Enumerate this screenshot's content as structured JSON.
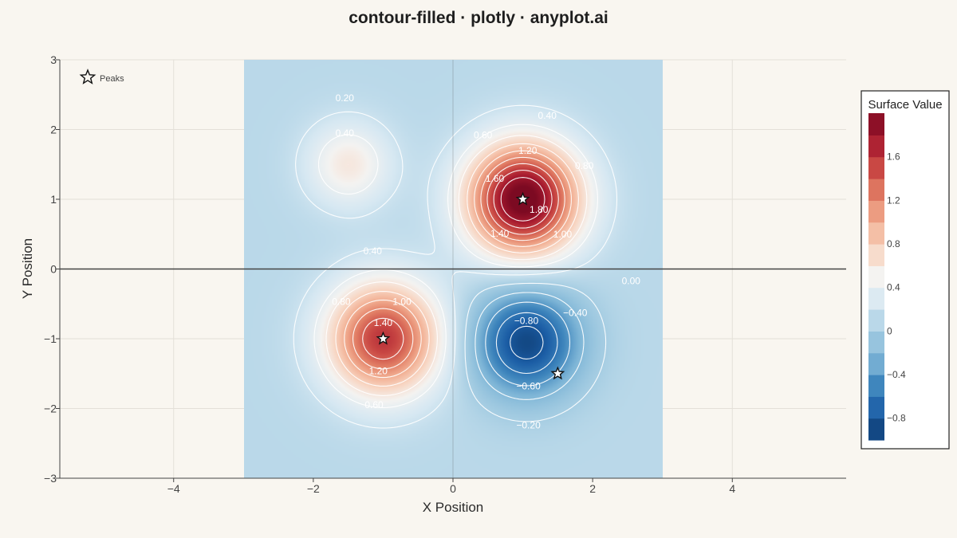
{
  "chart_data": {
    "type": "heatmap",
    "subtype": "filled-contour",
    "title": "contour-filled · plotly · anyplot.ai",
    "xlabel": "X Position",
    "ylabel": "Y Position",
    "xlim": [
      -5.63,
      5.63
    ],
    "ylim": [
      -3,
      3
    ],
    "x_ticks": [
      "−4",
      "−2",
      "0",
      "2",
      "4"
    ],
    "x_tick_values": [
      -4,
      -2,
      0,
      2,
      4
    ],
    "y_ticks": [
      "3",
      "2",
      "1",
      "0",
      "−1",
      "−2",
      "−3"
    ],
    "y_tick_values": [
      3,
      2,
      1,
      0,
      -1,
      -2,
      -3
    ],
    "data_extent": {
      "x": [
        -3,
        3
      ],
      "y": [
        -3,
        3
      ]
    },
    "surface_features": [
      {
        "kind": "peak",
        "x": 1,
        "y": 1,
        "z": 2.0
      },
      {
        "kind": "peak",
        "x": -1,
        "y": -1,
        "z": 1.5
      },
      {
        "kind": "valley",
        "x": 1.05,
        "y": -1.05,
        "z": -1.0
      },
      {
        "kind": "bump",
        "x": -1.5,
        "y": 1.5,
        "z": 0.5
      }
    ],
    "contour_labels": [
      {
        "text": "0.20",
        "x": -1.55,
        "y": 2.45
      },
      {
        "text": "0.40",
        "x": -1.55,
        "y": 1.95
      },
      {
        "text": "0.40",
        "x": 1.35,
        "y": 2.2
      },
      {
        "text": "0.60",
        "x": 0.43,
        "y": 1.92
      },
      {
        "text": "1.20",
        "x": 1.07,
        "y": 1.7
      },
      {
        "text": "0.80",
        "x": 1.88,
        "y": 1.48
      },
      {
        "text": "1.60",
        "x": 0.6,
        "y": 1.3
      },
      {
        "text": "1.80",
        "x": 1.23,
        "y": 0.85
      },
      {
        "text": "1.40",
        "x": 0.67,
        "y": 0.51
      },
      {
        "text": "1.00",
        "x": 1.57,
        "y": 0.5
      },
      {
        "text": "0.40",
        "x": -1.15,
        "y": 0.26
      },
      {
        "text": "0.00",
        "x": 2.55,
        "y": -0.17
      },
      {
        "text": "0.80",
        "x": -1.6,
        "y": -0.47
      },
      {
        "text": "1.00",
        "x": -0.73,
        "y": -0.47
      },
      {
        "text": "−0.40",
        "x": 1.75,
        "y": -0.63
      },
      {
        "text": "−0.80",
        "x": 1.05,
        "y": -0.74
      },
      {
        "text": "1.40",
        "x": -1.0,
        "y": -0.77
      },
      {
        "text": "1.20",
        "x": -1.07,
        "y": -1.46
      },
      {
        "text": "−0.60",
        "x": 1.08,
        "y": -1.68
      },
      {
        "text": "0.60",
        "x": -1.13,
        "y": -1.95
      },
      {
        "text": "−0.20",
        "x": 1.08,
        "y": -2.24
      }
    ],
    "markers": [
      {
        "x": 1,
        "y": 1
      },
      {
        "x": -1,
        "y": -1
      },
      {
        "x": 1.5,
        "y": -1.5
      }
    ],
    "legend": {
      "entries": [
        "Peaks"
      ],
      "placement": "top-left"
    },
    "colorbar": {
      "title": "Surface Value",
      "range": [
        -1.0,
        2.0
      ],
      "tick_values": [
        1.6,
        1.2,
        0.8,
        0.4,
        0,
        -0.4,
        -0.8
      ],
      "tick_labels": [
        "1.6",
        "1.2",
        "0.8",
        "0.4",
        "0",
        "−0.4",
        "−0.8"
      ],
      "colors": [
        "#0d3a6e",
        "#1c5ea6",
        "#3f86bd",
        "#7fb6d7",
        "#a7cee3",
        "#d6e8f2",
        "#f4f3f1",
        "#f8d6c3",
        "#f2af93",
        "#e27f66",
        "#c94844",
        "#a71a2f",
        "#7c0a22"
      ]
    },
    "grid": true,
    "zero_lines": true
  },
  "colors": {
    "background": "#f9f6f0",
    "grid": "#e4e0d8",
    "zero_line": "#444444",
    "contour_line": "#ffffff"
  }
}
